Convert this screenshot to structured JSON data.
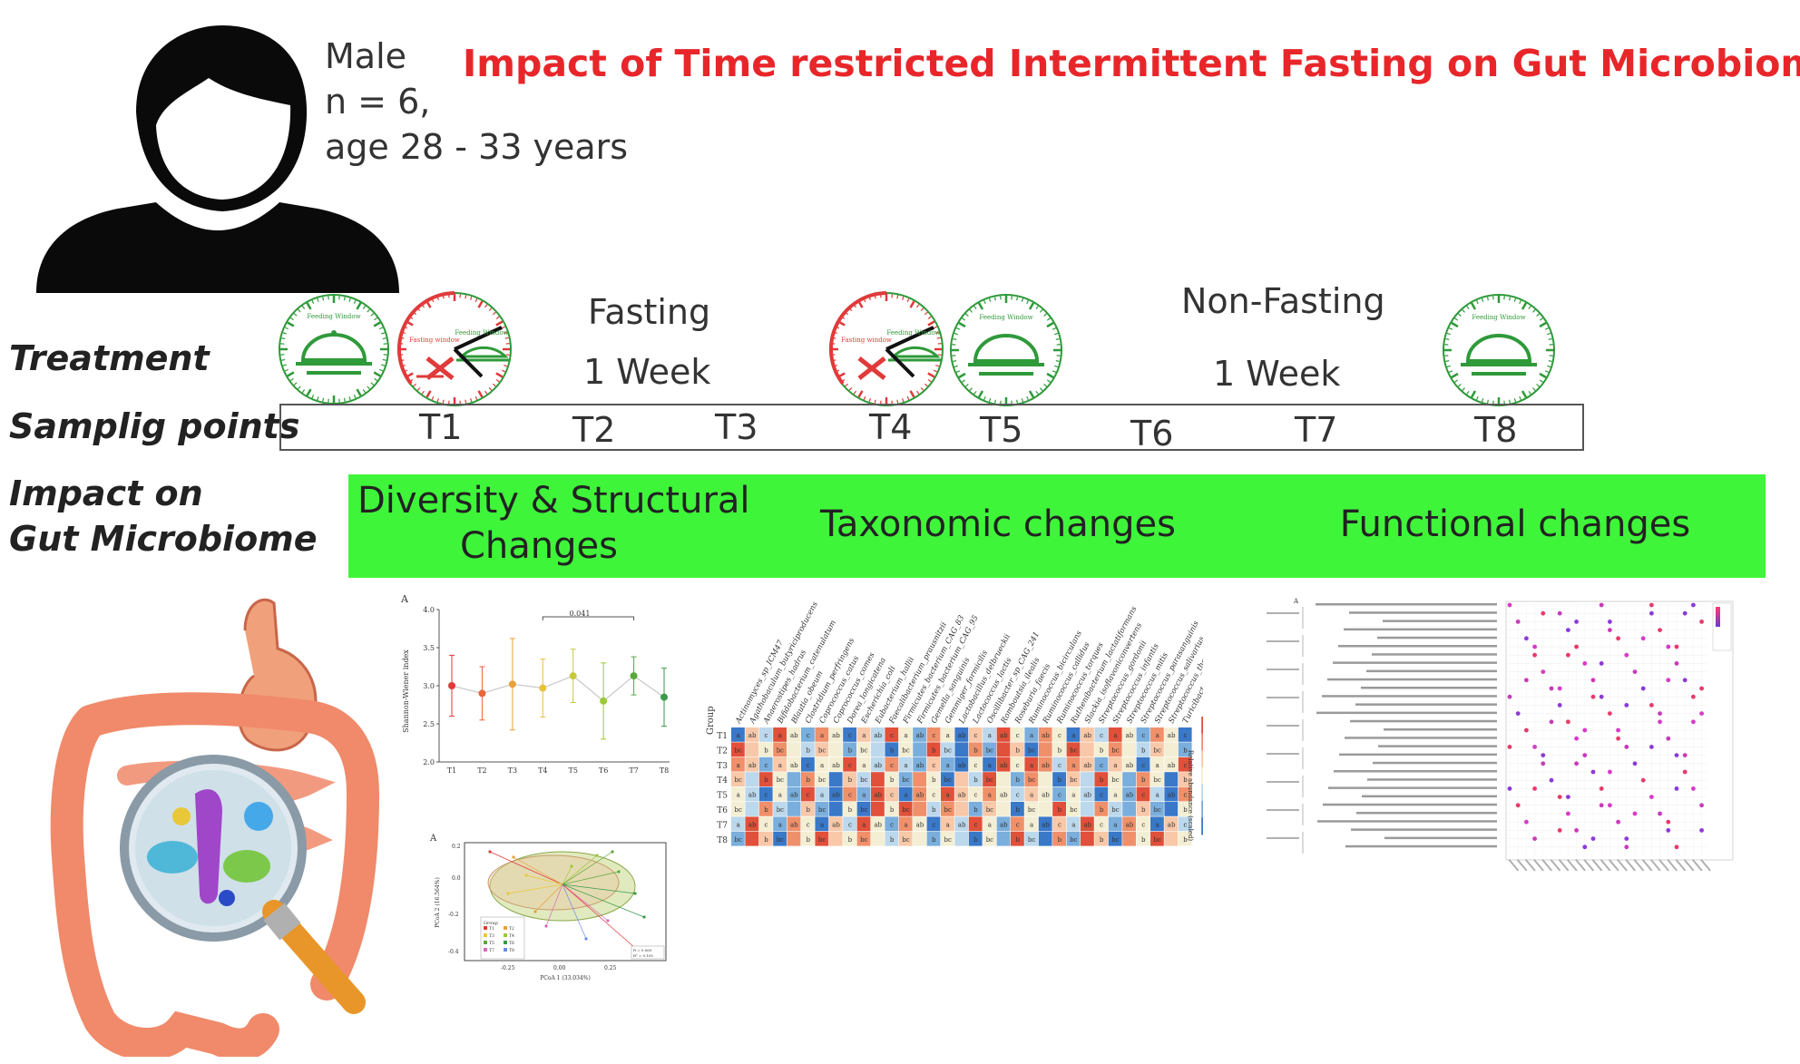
{
  "title": "Impact of Time restricted Intermittent Fasting on Gut Microbiome",
  "subject": {
    "sex": "Male",
    "n": "n = 6,",
    "age": "age 28 - 33 years"
  },
  "rows": {
    "treatment": "Treatment",
    "sampling": "Samplig points",
    "impact_line1": "Impact on",
    "impact_line2": "Gut Microbiome"
  },
  "phases": {
    "fasting": "Fasting",
    "fasting_duration": "1 Week",
    "nonfasting": "Non-Fasting",
    "nonfasting_duration": "1 Week"
  },
  "clock_labels": {
    "feeding": "Feeding Window",
    "fasting": "Fasting window"
  },
  "timepoints": [
    "T1",
    "T2",
    "T3",
    "T4",
    "T5",
    "T6",
    "T7",
    "T8"
  ],
  "impact_categories": {
    "diversity_line1": "Diversity & Structural",
    "diversity_line2": "Changes",
    "taxonomic": "Taxonomic changes",
    "functional": "Functional changes"
  },
  "colors": {
    "title": "#e8262a",
    "impact_bar": "#3ff53a",
    "clock_green": "#2f9a3a",
    "clock_red": "#e03a3a"
  },
  "chart_data": [
    {
      "type": "line",
      "panel": "A",
      "categories": [
        "T1",
        "T2",
        "T3",
        "T4",
        "T5",
        "T6",
        "T7",
        "T8"
      ],
      "values": [
        3.0,
        2.9,
        3.02,
        2.97,
        3.13,
        2.8,
        3.13,
        2.85
      ],
      "errors": [
        0.4,
        0.35,
        0.6,
        0.38,
        0.35,
        0.5,
        0.25,
        0.38
      ],
      "ylabel": "Shannon-Wiener index",
      "yticks": [
        "2.0",
        "2.5",
        "3.0",
        "3.5",
        "4.0"
      ],
      "ylim": [
        2.0,
        4.0
      ],
      "annotation": "0.041",
      "colors": [
        "#e03a3a",
        "#e8663a",
        "#e8a03a",
        "#e8c03a",
        "#c8c83a",
        "#9cc83a",
        "#5aa83a",
        "#3a9a4a"
      ]
    },
    {
      "type": "scatter",
      "panel": "A",
      "xlabel": "PCoA 1 (33.034%)",
      "ylabel": "PCoA 2 (16.564%)",
      "xticks": [
        "-0.25",
        "0.00",
        "0.25"
      ],
      "yticks": [
        "0.2",
        "0.0",
        "-0.2",
        "-0.4"
      ],
      "legend_title": "Group",
      "stats": [
        "R = 0.069",
        "R² = 0.105"
      ]
    },
    {
      "type": "heatmap",
      "row_header": "Group",
      "rows": [
        "T1",
        "T2",
        "T3",
        "T4",
        "T5",
        "T6",
        "T7",
        "T8"
      ],
      "columns": [
        "Actinomyces_sp_ICM47",
        "Agathobaculum_butyriciproducens",
        "Anaerostipes_hadrus",
        "Bifidobacterium_catenulatum",
        "Blautia_obeum",
        "Clostridium_perfringens",
        "Coprococcus_catus",
        "Coprococcus_comes",
        "Dorea_longicatena",
        "Escherichia_coli",
        "Eubacterium_hallii",
        "Faecalibacterium_prausnitzii",
        "Firmicutes_bacterium_CAG_83",
        "Firmicutes_bacterium_CAG_95",
        "Gemella_sanguinis",
        "Gemmiger_formicilis",
        "Lactobacillus_delbrueckii",
        "Lactococcus_lactis",
        "Oscillibacter_sp_CAG_241",
        "Romboutsia_ilealis",
        "Roseburia_faecis",
        "Ruminococcus_bicirculans",
        "Ruminococcus_callidus",
        "Ruminococcus_torques",
        "Ruthenibacterium_lactatiformans",
        "Slackia_isoflavoniconvertens",
        "Streptococcus_gordonii",
        "Streptococcus_infantis",
        "Streptococcus_mitis",
        "Streptococcus_parasanguinis",
        "Streptococcus_salivarius",
        "Streptococcus_thermophilus",
        "Turicibacter_sanguinis"
      ],
      "colorbar_label": "Relative abundance (scaled)",
      "colorbar_ticks": [
        "2",
        "1",
        "0",
        "-1",
        "-2"
      ]
    },
    {
      "type": "scatter",
      "panel": "A",
      "description_kind": "pathway bubble plot"
    }
  ]
}
